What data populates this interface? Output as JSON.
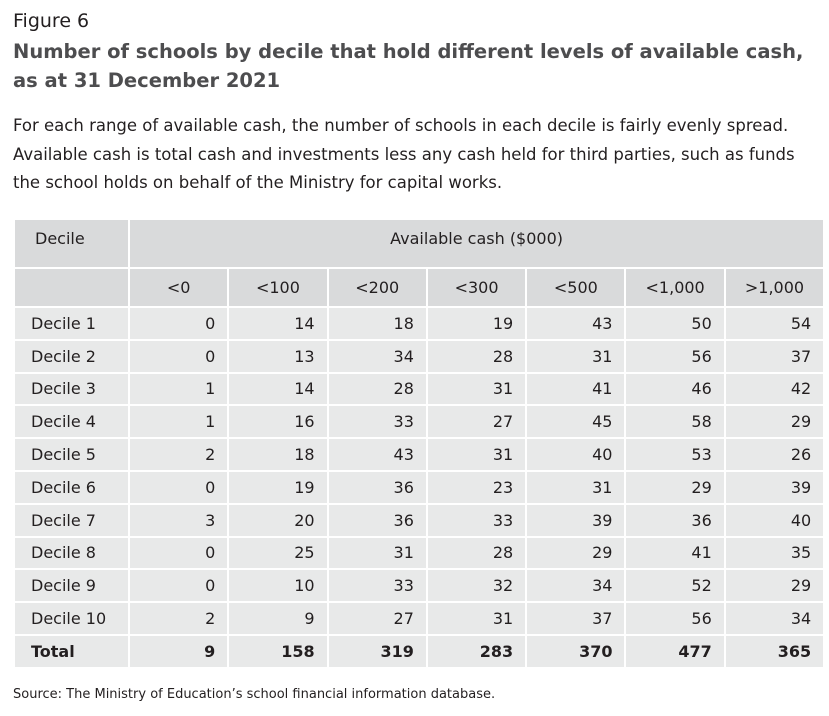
{
  "figure": {
    "label": "Figure 6",
    "title": "Number of schools by decile that hold different levels of available cash, as at 31 December 2021",
    "description": "For each range of available cash, the number of schools in each decile is fairly evenly spread. Available cash is total cash and investments less any cash held for third parties, such as funds the school holds on behalf of the Ministry for capital works."
  },
  "table": {
    "decile_header": "Decile",
    "group_header": "Available cash ($000)",
    "columns": [
      "<0",
      "<100",
      "<200",
      "<300",
      "<500",
      "<1,000",
      ">1,000"
    ],
    "rows": [
      {
        "label": "Decile 1",
        "values": [
          "0",
          "14",
          "18",
          "19",
          "43",
          "50",
          "54"
        ]
      },
      {
        "label": "Decile 2",
        "values": [
          "0",
          "13",
          "34",
          "28",
          "31",
          "56",
          "37"
        ]
      },
      {
        "label": "Decile 3",
        "values": [
          "1",
          "14",
          "28",
          "31",
          "41",
          "46",
          "42"
        ]
      },
      {
        "label": "Decile 4",
        "values": [
          "1",
          "16",
          "33",
          "27",
          "45",
          "58",
          "29"
        ]
      },
      {
        "label": "Decile 5",
        "values": [
          "2",
          "18",
          "43",
          "31",
          "40",
          "53",
          "26"
        ]
      },
      {
        "label": "Decile 6",
        "values": [
          "0",
          "19",
          "36",
          "23",
          "31",
          "29",
          "39"
        ]
      },
      {
        "label": "Decile 7",
        "values": [
          "3",
          "20",
          "36",
          "33",
          "39",
          "36",
          "40"
        ]
      },
      {
        "label": "Decile 8",
        "values": [
          "0",
          "25",
          "31",
          "28",
          "29",
          "41",
          "35"
        ]
      },
      {
        "label": "Decile 9",
        "values": [
          "0",
          "10",
          "33",
          "32",
          "34",
          "52",
          "29"
        ]
      },
      {
        "label": "Decile 10",
        "values": [
          "2",
          "9",
          "27",
          "31",
          "37",
          "56",
          "34"
        ]
      }
    ],
    "total": {
      "label": "Total",
      "values": [
        "9",
        "158",
        "319",
        "283",
        "370",
        "477",
        "365"
      ]
    }
  },
  "source": "Source: The Ministry of Education’s school financial information database.",
  "colors": {
    "header_fill": "#d9dadb",
    "body_fill": "#e8e9e9",
    "title_text": "#4d4d4f"
  }
}
